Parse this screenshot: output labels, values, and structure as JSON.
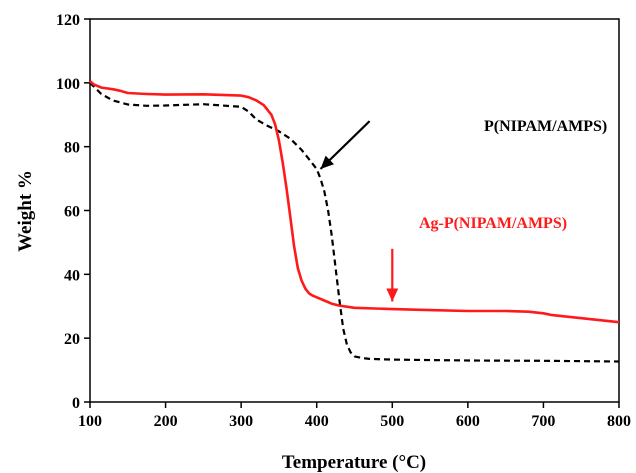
{
  "chart_data": {
    "type": "line",
    "title": "",
    "xlabel": "Temperature (°C)",
    "ylabel": "Weight %",
    "xlim": [
      100,
      800
    ],
    "ylim": [
      0,
      120
    ],
    "xticks": [
      100,
      200,
      300,
      400,
      500,
      600,
      700,
      800
    ],
    "yticks": [
      0,
      20,
      40,
      60,
      80,
      100,
      120
    ],
    "grid": false,
    "legend": "none",
    "series": [
      {
        "name": "P(NIPAM/AMPS)",
        "color": "#000000",
        "dash": "dashed",
        "x": [
          100,
          115,
          130,
          150,
          175,
          200,
          250,
          300,
          310,
          320,
          335,
          350,
          365,
          380,
          390,
          400,
          405,
          410,
          415,
          420,
          425,
          430,
          435,
          440,
          445,
          450,
          460,
          470,
          500,
          600,
          700,
          800
        ],
        "y": [
          100.0,
          96.5,
          94.5,
          93.2,
          92.8,
          92.9,
          93.3,
          92.5,
          91.0,
          88.5,
          86.5,
          84.8,
          82.5,
          79.0,
          76.0,
          73.0,
          70.0,
          66.0,
          60.0,
          52.0,
          42.0,
          32.0,
          23.0,
          18.0,
          15.5,
          14.3,
          13.8,
          13.5,
          13.3,
          13.0,
          12.9,
          12.7
        ]
      },
      {
        "name": "Ag-P(NIPAM/AMPS)",
        "color": "#ff1a1a",
        "dash": "solid",
        "x": [
          100,
          105,
          115,
          130,
          140,
          150,
          175,
          200,
          250,
          300,
          310,
          320,
          330,
          340,
          345,
          350,
          355,
          360,
          365,
          370,
          375,
          380,
          385,
          390,
          395,
          400,
          410,
          420,
          430,
          450,
          500,
          550,
          600,
          650,
          680,
          700,
          710,
          800
        ],
        "y": [
          100.5,
          99.5,
          98.5,
          98.0,
          97.5,
          96.8,
          96.5,
          96.3,
          96.4,
          96.0,
          95.5,
          94.5,
          93.0,
          90.0,
          87.0,
          82.0,
          75.0,
          67.0,
          58.0,
          49.0,
          42.0,
          38.0,
          35.5,
          34.0,
          33.3,
          32.8,
          31.8,
          30.8,
          30.2,
          29.5,
          29.1,
          28.8,
          28.5,
          28.5,
          28.3,
          27.8,
          27.3,
          25.0
        ]
      }
    ],
    "annotations": [
      {
        "text": "P(NIPAM/AMPS)",
        "color": "#000000",
        "arrow_from": [
          470,
          88
        ],
        "arrow_to": [
          405,
          73
        ]
      },
      {
        "text": "Ag-P(NIPAM/AMPS)",
        "color": "#ff1a1a",
        "arrow_from": [
          500,
          48
        ],
        "arrow_to": [
          500,
          31.5
        ]
      }
    ]
  }
}
